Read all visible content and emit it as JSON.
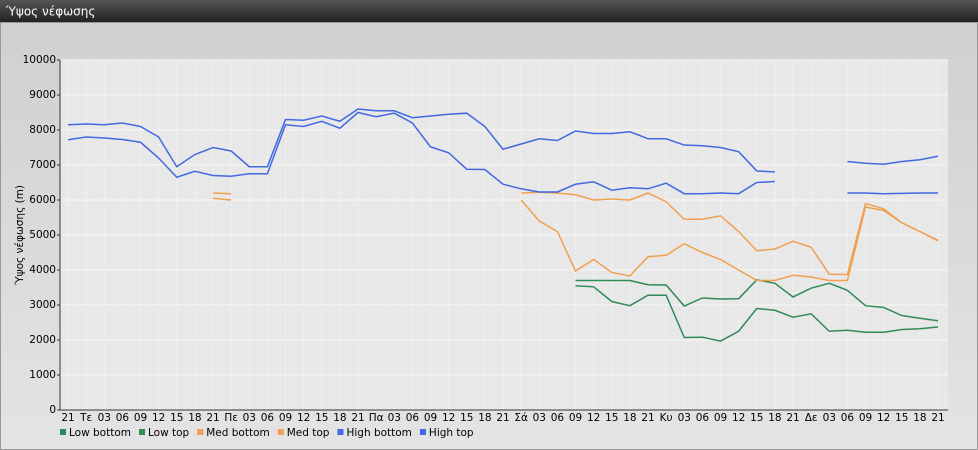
{
  "chart_data": {
    "type": "line",
    "title": "Ύψος νέφωσης",
    "y_label": "Ύψος νέφωσης (m)",
    "categories": [
      "21",
      "Τε",
      "03",
      "06",
      "09",
      "12",
      "15",
      "18",
      "21",
      "Πε",
      "03",
      "06",
      "09",
      "12",
      "15",
      "18",
      "21",
      "Πα",
      "03",
      "06",
      "09",
      "12",
      "15",
      "18",
      "21",
      "Σά",
      "03",
      "06",
      "09",
      "12",
      "15",
      "18",
      "21",
      "Κυ",
      "03",
      "06",
      "09",
      "12",
      "15",
      "18",
      "21",
      "Δε",
      "03",
      "06",
      "09",
      "12",
      "15",
      "18",
      "21"
    ],
    "series": [
      {
        "name": "Low bottom",
        "color": "#2e8b57",
        "values": [
          null,
          null,
          null,
          null,
          null,
          null,
          null,
          null,
          null,
          null,
          null,
          null,
          null,
          null,
          null,
          null,
          null,
          null,
          null,
          null,
          null,
          null,
          null,
          null,
          null,
          null,
          null,
          null,
          3550,
          3520,
          3100,
          2980,
          3280,
          3280,
          2070,
          2080,
          1970,
          2250,
          2900,
          2850,
          2650,
          2750,
          2250,
          2280,
          2220,
          2220,
          2300,
          2320,
          2370
        ]
      },
      {
        "name": "Low top",
        "color": "#2e8b57",
        "values": [
          null,
          null,
          null,
          null,
          null,
          null,
          null,
          null,
          null,
          null,
          null,
          null,
          null,
          null,
          null,
          null,
          null,
          null,
          null,
          null,
          null,
          null,
          null,
          null,
          null,
          null,
          null,
          null,
          3700,
          3700,
          3700,
          3700,
          3580,
          3570,
          2970,
          3200,
          3170,
          3180,
          3720,
          3620,
          3230,
          3480,
          3620,
          3420,
          2980,
          2930,
          2700,
          2620,
          2550
        ]
      },
      {
        "name": "Med bottom",
        "color": "#f0a050",
        "values": [
          null,
          null,
          null,
          null,
          null,
          null,
          null,
          null,
          6050,
          6000,
          null,
          null,
          null,
          null,
          null,
          null,
          null,
          null,
          null,
          null,
          null,
          null,
          null,
          null,
          null,
          6000,
          5400,
          5100,
          3970,
          4300,
          3930,
          3830,
          4380,
          4420,
          4750,
          4500,
          4300,
          4000,
          3700,
          3700,
          3850,
          3800,
          3700,
          3700,
          5800,
          5700,
          5350,
          5100,
          4830
        ]
      },
      {
        "name": "Med top",
        "color": "#f0a050",
        "values": [
          null,
          null,
          null,
          null,
          null,
          null,
          null,
          null,
          6200,
          6180,
          null,
          null,
          null,
          null,
          null,
          null,
          null,
          null,
          null,
          null,
          null,
          null,
          null,
          null,
          null,
          6200,
          6220,
          6200,
          6150,
          6000,
          6030,
          6000,
          6200,
          5950,
          5450,
          5450,
          5550,
          5100,
          4550,
          4600,
          4820,
          4650,
          3880,
          3870,
          5900,
          5750,
          5350,
          5100,
          4850
        ]
      },
      {
        "name": "High bottom",
        "color": "#4169e1",
        "values": [
          7720,
          7800,
          7770,
          7730,
          7650,
          7200,
          6650,
          6820,
          6700,
          6680,
          6750,
          6750,
          8150,
          8100,
          8250,
          8050,
          8500,
          8380,
          8480,
          8200,
          7520,
          7350,
          6880,
          6870,
          6450,
          6320,
          6230,
          6230,
          6450,
          6520,
          6280,
          6350,
          6320,
          6480,
          6180,
          6180,
          6200,
          6180,
          6500,
          6530,
          null,
          null,
          null,
          6200,
          6200,
          6180,
          6190,
          6200,
          6200
        ]
      },
      {
        "name": "High top",
        "color": "#4169e1",
        "values": [
          8150,
          8170,
          8150,
          8200,
          8100,
          7800,
          6950,
          7300,
          7500,
          7400,
          6950,
          6950,
          8300,
          8280,
          8400,
          8250,
          8600,
          8550,
          8550,
          8350,
          8400,
          8450,
          8480,
          8100,
          7450,
          7600,
          7750,
          7700,
          7970,
          7900,
          7900,
          7950,
          7750,
          7750,
          7570,
          7550,
          7500,
          7380,
          6830,
          6800,
          null,
          null,
          null,
          7100,
          7050,
          7020,
          7100,
          7150,
          7250
        ]
      }
    ],
    "ylim": [
      0,
      10000
    ],
    "yticks": [
      0,
      1000,
      2000,
      3000,
      4000,
      5000,
      6000,
      7000,
      8000,
      9000,
      10000
    ],
    "grid": true
  }
}
